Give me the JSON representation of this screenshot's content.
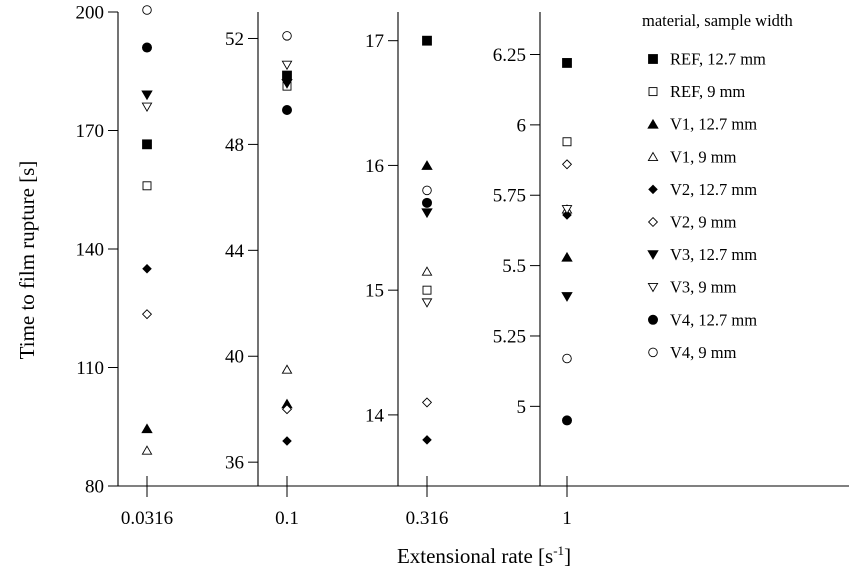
{
  "chart_data": {
    "type": "scatter",
    "xlabel": "Extensional rate [s",
    "xlabel_sup": "-1",
    "xlabel_end": "]",
    "ylabel": "Time to film rupture [s]",
    "legend_title": "material, sample width",
    "legend_position": "top-right",
    "grid": false,
    "series": [
      {
        "name": "REF, 12.7 mm",
        "marker": "square-filled"
      },
      {
        "name": "REF, 9 mm",
        "marker": "square-open"
      },
      {
        "name": "V1, 12.7 mm",
        "marker": "triangle-up-filled"
      },
      {
        "name": "V1, 9 mm",
        "marker": "triangle-up-open"
      },
      {
        "name": "V2, 12.7 mm",
        "marker": "diamond-filled"
      },
      {
        "name": "V2, 9 mm",
        "marker": "diamond-open"
      },
      {
        "name": "V3, 12.7 mm",
        "marker": "triangle-down-filled"
      },
      {
        "name": "V3, 9 mm",
        "marker": "triangle-down-open"
      },
      {
        "name": "V4, 12.7 mm",
        "marker": "circle-filled"
      },
      {
        "name": "V4, 9 mm",
        "marker": "circle-open"
      }
    ],
    "panels": [
      {
        "x_label": "0.0316",
        "ylim": [
          80,
          200
        ],
        "yticks": [
          80,
          110,
          140,
          170,
          200
        ],
        "values": [
          166.5,
          156.0,
          94.5,
          89.0,
          135.0,
          123.5,
          179.0,
          176.0,
          191.0,
          200.5
        ]
      },
      {
        "x_label": "0.1",
        "ylim": [
          35.1,
          53.0
        ],
        "yticks": [
          36,
          40,
          44,
          48,
          52
        ],
        "values": [
          50.6,
          50.2,
          38.2,
          39.5,
          36.8,
          38.0,
          50.3,
          51.0,
          49.3,
          52.1
        ]
      },
      {
        "x_label": "0.316",
        "ylim": [
          13.43,
          17.23
        ],
        "yticks": [
          14,
          15,
          16,
          17
        ],
        "values": [
          17.0,
          15.0,
          16.0,
          15.15,
          13.8,
          14.1,
          15.62,
          14.9,
          15.7,
          15.8
        ]
      },
      {
        "x_label": "1",
        "ylim": [
          4.717,
          6.401
        ],
        "yticks": [
          5,
          5.25,
          5.5,
          5.75,
          6,
          6.25
        ],
        "ytick_labels": [
          "5",
          "5.25",
          "5.5",
          "5.75",
          "6",
          "6.25"
        ],
        "values": [
          6.22,
          5.94,
          5.53,
          5.7,
          5.68,
          5.86,
          5.39,
          5.7,
          4.95,
          5.17
        ]
      }
    ]
  }
}
